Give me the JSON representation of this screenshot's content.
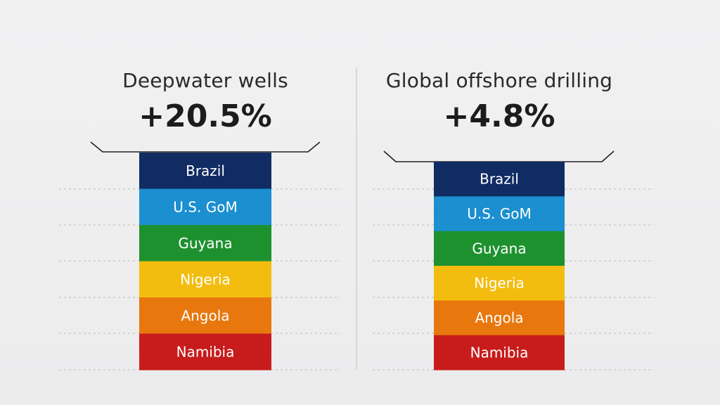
{
  "chart_data": [
    {
      "type": "bar",
      "title": "Deepwater wells",
      "value_label": "+20.5%",
      "value": 20.5,
      "categories": [
        "Brazil",
        "U.S. GoM",
        "Guyana",
        "Nigeria",
        "Angola",
        "Namibia"
      ],
      "colors": [
        "#102c63",
        "#1b8fcf",
        "#1e912f",
        "#f3bd0f",
        "#e8780e",
        "#c81c1c"
      ]
    },
    {
      "type": "bar",
      "title": "Global offshore drilling",
      "value_label": "+4.8%",
      "value": 4.8,
      "categories": [
        "Brazil",
        "U.S. GoM",
        "Guyana",
        "Nigeria",
        "Angola",
        "Namibia"
      ],
      "colors": [
        "#102c63",
        "#1b8fcf",
        "#1e912f",
        "#f3bd0f",
        "#e8780e",
        "#c81c1c"
      ]
    }
  ]
}
